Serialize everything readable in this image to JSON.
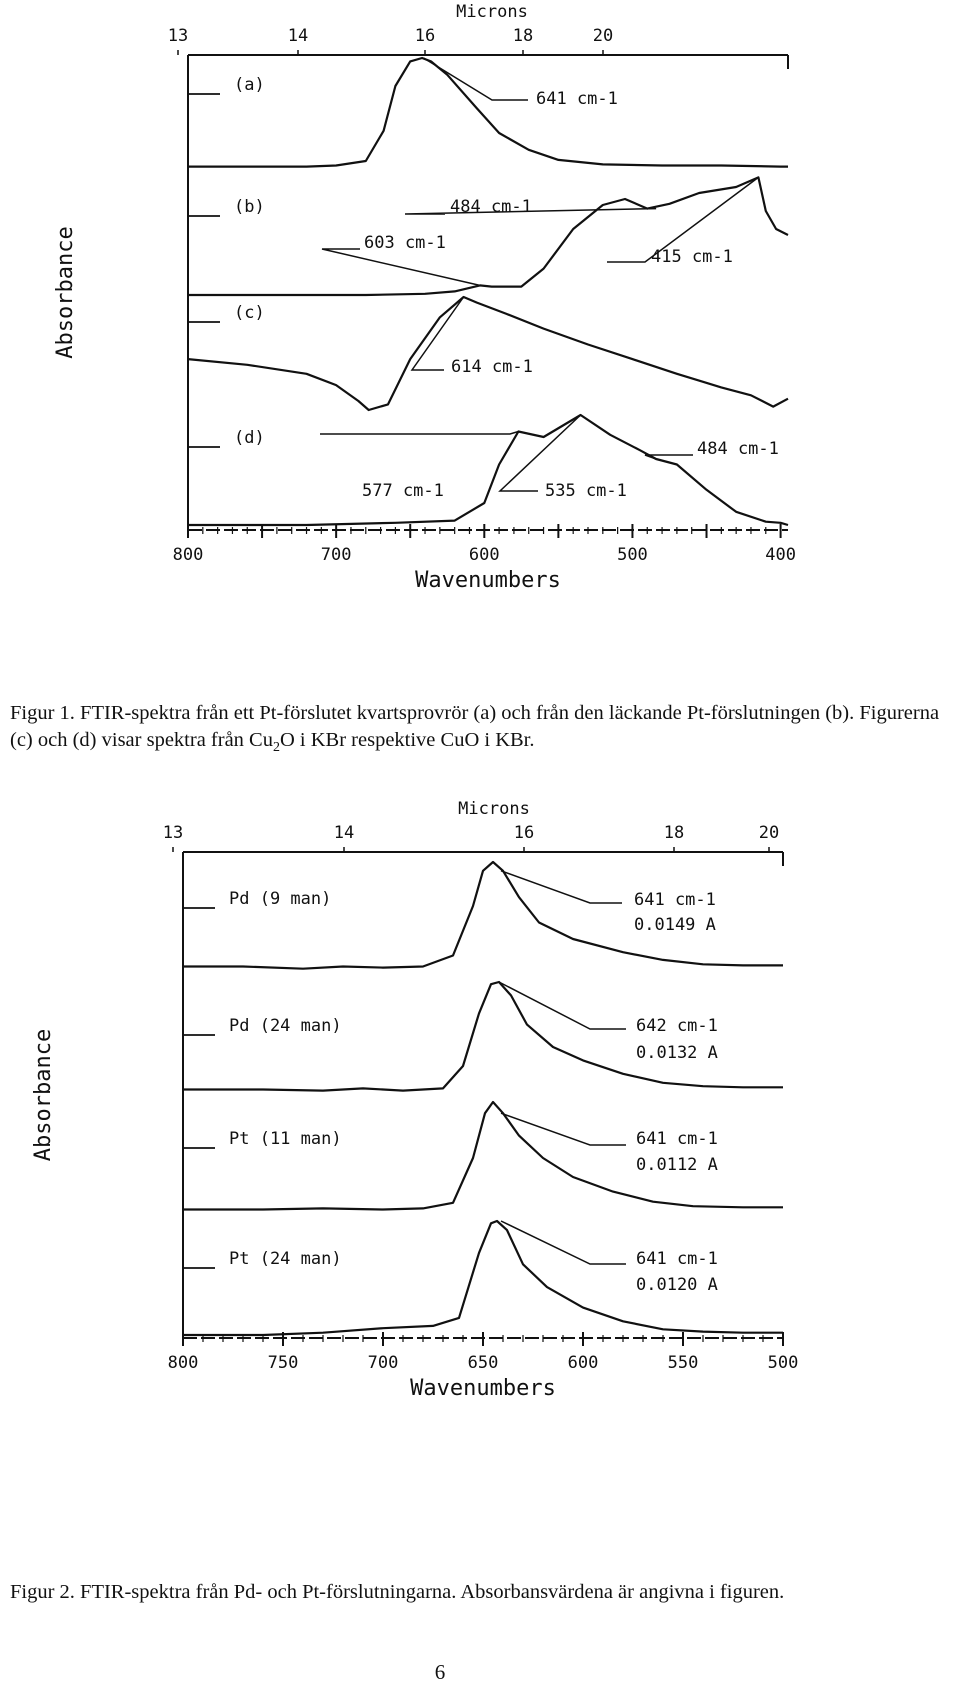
{
  "chart_data": [
    {
      "type": "line",
      "xlabel": "Wavenumbers",
      "ylabel": "Absorbance",
      "x_top_label": "Microns",
      "xlim": [
        800,
        395
      ],
      "top_ticks": [
        "13",
        "14",
        "16",
        "18",
        "20"
      ],
      "bottom_ticks": [
        "800",
        "700",
        "600",
        "500",
        "400"
      ],
      "series": [
        {
          "label": "(a)",
          "points": [
            [
              800,
              0.03
            ],
            [
              720,
              0.03
            ],
            [
              700,
              0.04
            ],
            [
              680,
              0.08
            ],
            [
              668,
              0.35
            ],
            [
              660,
              0.75
            ],
            [
              650,
              0.97
            ],
            [
              642,
              1.0
            ],
            [
              636,
              0.97
            ],
            [
              625,
              0.85
            ],
            [
              605,
              0.55
            ],
            [
              590,
              0.33
            ],
            [
              570,
              0.18
            ],
            [
              550,
              0.09
            ],
            [
              520,
              0.05
            ],
            [
              480,
              0.04
            ],
            [
              440,
              0.04
            ],
            [
              400,
              0.03
            ],
            [
              395,
              0.03
            ]
          ],
          "annotations": [
            {
              "text": "641 cm-1",
              "x": 641
            }
          ]
        },
        {
          "label": "(b)",
          "points": [
            [
              800,
              0.0
            ],
            [
              720,
              0.0
            ],
            [
              680,
              0.0
            ],
            [
              640,
              0.01
            ],
            [
              620,
              0.03
            ],
            [
              603,
              0.08
            ],
            [
              595,
              0.07
            ],
            [
              575,
              0.07
            ],
            [
              560,
              0.22
            ],
            [
              540,
              0.55
            ],
            [
              520,
              0.75
            ],
            [
              505,
              0.8
            ],
            [
              490,
              0.72
            ],
            [
              475,
              0.76
            ],
            [
              455,
              0.85
            ],
            [
              430,
              0.9
            ],
            [
              415,
              0.98
            ],
            [
              410,
              0.7
            ],
            [
              403,
              0.55
            ],
            [
              395,
              0.5
            ]
          ],
          "annotations": [
            {
              "text": "484 cm-1",
              "x": 484
            },
            {
              "text": "603 cm-1",
              "x": 603
            },
            {
              "text": "415 cm-1",
              "x": 415
            }
          ]
        },
        {
          "label": "(c)",
          "points": [
            [
              800,
              0.45
            ],
            [
              760,
              0.4
            ],
            [
              720,
              0.32
            ],
            [
              700,
              0.22
            ],
            [
              685,
              0.08
            ],
            [
              678,
              0.0
            ],
            [
              665,
              0.05
            ],
            [
              650,
              0.45
            ],
            [
              630,
              0.82
            ],
            [
              614,
              1.0
            ],
            [
              605,
              0.95
            ],
            [
              585,
              0.85
            ],
            [
              560,
              0.72
            ],
            [
              530,
              0.58
            ],
            [
              500,
              0.45
            ],
            [
              470,
              0.32
            ],
            [
              440,
              0.2
            ],
            [
              420,
              0.13
            ],
            [
              405,
              0.03
            ],
            [
              395,
              0.1
            ]
          ],
          "annotations": [
            {
              "text": "614 cm-1",
              "x": 614
            }
          ]
        },
        {
          "label": "(d)",
          "points": [
            [
              800,
              0.0
            ],
            [
              720,
              0.0
            ],
            [
              660,
              0.02
            ],
            [
              620,
              0.04
            ],
            [
              600,
              0.2
            ],
            [
              590,
              0.55
            ],
            [
              577,
              0.85
            ],
            [
              560,
              0.8
            ],
            [
              535,
              1.0
            ],
            [
              515,
              0.82
            ],
            [
              495,
              0.68
            ],
            [
              484,
              0.6
            ],
            [
              470,
              0.55
            ],
            [
              450,
              0.32
            ],
            [
              430,
              0.12
            ],
            [
              410,
              0.03
            ],
            [
              400,
              0.02
            ],
            [
              395,
              0.0
            ]
          ],
          "annotations": [
            {
              "text": "577 cm-1",
              "x": 577
            },
            {
              "text": "535 cm-1",
              "x": 535
            },
            {
              "text": "484 cm-1",
              "x": 484
            }
          ]
        }
      ]
    },
    {
      "type": "line",
      "xlabel": "Wavenumbers",
      "ylabel": "Absorbance",
      "x_top_label": "Microns",
      "xlim": [
        800,
        500
      ],
      "top_ticks": [
        "13",
        "14",
        "16",
        "18",
        "20"
      ],
      "bottom_ticks": [
        "800",
        "750",
        "700",
        "650",
        "600",
        "550",
        "500"
      ],
      "series": [
        {
          "label": "Pd (9 man)",
          "points": [
            [
              800,
              0.05
            ],
            [
              770,
              0.05
            ],
            [
              740,
              0.03
            ],
            [
              720,
              0.05
            ],
            [
              700,
              0.04
            ],
            [
              680,
              0.05
            ],
            [
              665,
              0.15
            ],
            [
              655,
              0.6
            ],
            [
              650,
              0.92
            ],
            [
              645,
              1.0
            ],
            [
              640,
              0.92
            ],
            [
              632,
              0.68
            ],
            [
              622,
              0.45
            ],
            [
              605,
              0.3
            ],
            [
              580,
              0.18
            ],
            [
              560,
              0.11
            ],
            [
              540,
              0.07
            ],
            [
              520,
              0.06
            ],
            [
              500,
              0.06
            ]
          ],
          "annotations": [
            {
              "text": "641 cm-1",
              "x": 641
            },
            {
              "text": "0.0149 A"
            }
          ]
        },
        {
          "label": "Pd (24 man)",
          "points": [
            [
              800,
              0.04
            ],
            [
              760,
              0.04
            ],
            [
              730,
              0.03
            ],
            [
              710,
              0.05
            ],
            [
              690,
              0.03
            ],
            [
              670,
              0.05
            ],
            [
              660,
              0.25
            ],
            [
              652,
              0.72
            ],
            [
              646,
              0.98
            ],
            [
              642,
              1.0
            ],
            [
              636,
              0.88
            ],
            [
              628,
              0.62
            ],
            [
              615,
              0.42
            ],
            [
              600,
              0.3
            ],
            [
              580,
              0.18
            ],
            [
              560,
              0.1
            ],
            [
              540,
              0.07
            ],
            [
              520,
              0.06
            ],
            [
              500,
              0.06
            ]
          ],
          "annotations": [
            {
              "text": "642 cm-1",
              "x": 642
            },
            {
              "text": "0.0132 A"
            }
          ]
        },
        {
          "label": "Pt (11 man)",
          "points": [
            [
              800,
              0.04
            ],
            [
              760,
              0.04
            ],
            [
              730,
              0.05
            ],
            [
              700,
              0.04
            ],
            [
              680,
              0.05
            ],
            [
              665,
              0.1
            ],
            [
              655,
              0.5
            ],
            [
              649,
              0.9
            ],
            [
              645,
              1.0
            ],
            [
              640,
              0.9
            ],
            [
              632,
              0.7
            ],
            [
              620,
              0.5
            ],
            [
              605,
              0.33
            ],
            [
              585,
              0.2
            ],
            [
              565,
              0.11
            ],
            [
              545,
              0.07
            ],
            [
              520,
              0.06
            ],
            [
              500,
              0.06
            ]
          ],
          "annotations": [
            {
              "text": "641 cm-1",
              "x": 641
            },
            {
              "text": "0.0112 A"
            }
          ]
        },
        {
          "label": "Pt (24 man)",
          "points": [
            [
              800,
              0.0
            ],
            [
              760,
              0.0
            ],
            [
              730,
              0.02
            ],
            [
              700,
              0.06
            ],
            [
              675,
              0.08
            ],
            [
              662,
              0.15
            ],
            [
              652,
              0.72
            ],
            [
              646,
              0.98
            ],
            [
              643,
              1.0
            ],
            [
              638,
              0.92
            ],
            [
              630,
              0.62
            ],
            [
              618,
              0.42
            ],
            [
              600,
              0.24
            ],
            [
              580,
              0.12
            ],
            [
              560,
              0.05
            ],
            [
              540,
              0.03
            ],
            [
              520,
              0.02
            ],
            [
              500,
              0.02
            ]
          ],
          "annotations": [
            {
              "text": "641 cm-1",
              "x": 641
            },
            {
              "text": "0.0120 A"
            }
          ]
        }
      ]
    }
  ],
  "captions": {
    "fig1": {
      "prefix": "Figur 1. FTIR-spektra från ett Pt-förslutet kvartsprovrör (a) och från den läckande Pt-förslutningen (b). Figurerna (c) och (d) visar spektra från Cu",
      "sub": "2",
      "suffix": "O i KBr respektive CuO i KBr."
    },
    "fig2": "Figur 2. FTIR-spektra från Pd- och Pt-förslutningarna. Absorbansvärdena är angivna i figuren."
  },
  "page_number": "6",
  "colors": {
    "ink": "#111111",
    "paper": "#ffffff"
  }
}
